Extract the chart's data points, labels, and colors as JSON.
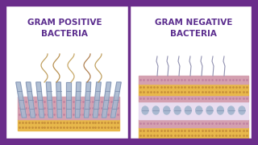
{
  "bg_color": "#ffffff",
  "border_color": "#6b2d8b",
  "border_lw": 6,
  "divider_color": "#6b2d8b",
  "divider_lw": 2.5,
  "title_left_line1": "GRAM POSITIVE",
  "title_left_line2": "BACTERIA",
  "title_right_line1": "GRAM NEGATIVE",
  "title_right_line2": "BACTERIA",
  "title_color": "#5b2d8e",
  "title_fontsize": 7.5,
  "pink_color": "#d4a0b0",
  "pink_dot_color": "#c080a0",
  "gold_color": "#e8b84b",
  "gold_dot_color": "#c8903a",
  "protein_body": "#a8b8d0",
  "protein_cap": "#8090b0",
  "pilus_color": "#c0b090",
  "pilus_color2": "#9090b0"
}
